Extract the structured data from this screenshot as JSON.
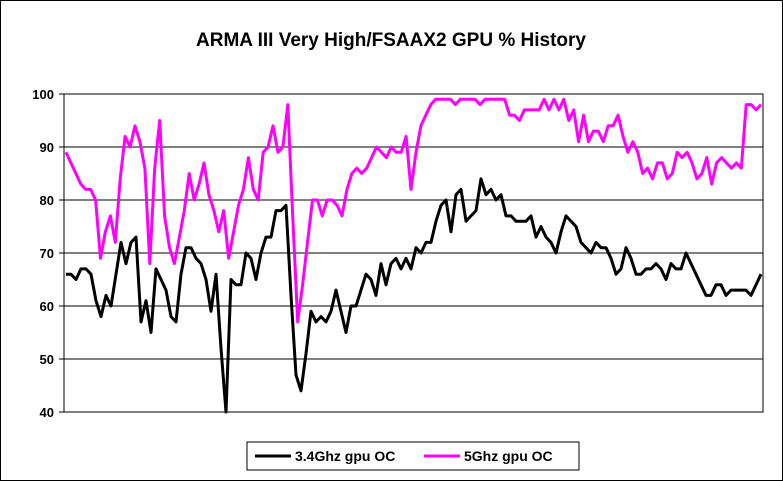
{
  "chart_data": {
    "type": "line",
    "title": "ARMA III Very High/FSAAX2 GPU % History",
    "xlabel": "",
    "ylabel": "",
    "ylim": [
      40,
      100
    ],
    "yticks": [
      "40",
      "50",
      "60",
      "70",
      "80",
      "90",
      "100"
    ],
    "grid": true,
    "legend_position": "bottom",
    "series": [
      {
        "name": "3.4Ghz gpu OC",
        "color": "#000000",
        "values": [
          66,
          66,
          65,
          67,
          67,
          66,
          61,
          58,
          62,
          60,
          66,
          72,
          68,
          72,
          73,
          57,
          61,
          55,
          67,
          65,
          63,
          58,
          57,
          66,
          71,
          71,
          69,
          68,
          65,
          59,
          66,
          52,
          40,
          65,
          64,
          64,
          70,
          69,
          65,
          70,
          73,
          73,
          78,
          78,
          79,
          62,
          47,
          44,
          51,
          59,
          57,
          58,
          57,
          59,
          63,
          59,
          55,
          60,
          60,
          63,
          66,
          65,
          62,
          68,
          64,
          68,
          69,
          67,
          69,
          67,
          71,
          70,
          72,
          72,
          76,
          79,
          80,
          74,
          81,
          82,
          76,
          77,
          78,
          84,
          81,
          82,
          80,
          81,
          77,
          77,
          76,
          76,
          76,
          77,
          73,
          75,
          73,
          72,
          70,
          74,
          77,
          76,
          75,
          72,
          71,
          70,
          72,
          71,
          71,
          69,
          66,
          67,
          71,
          69,
          66,
          66,
          67,
          67,
          68,
          67,
          65,
          68,
          67,
          67,
          70,
          68,
          66,
          64,
          62,
          62,
          64,
          64,
          62,
          63,
          63,
          63,
          63,
          62,
          64,
          66
        ]
      },
      {
        "name": "5Ghz gpu OC",
        "color": "#FF00FF",
        "values": [
          89,
          87,
          85,
          83,
          82,
          82,
          80,
          69,
          74,
          77,
          72,
          84,
          92,
          90,
          94,
          91,
          86,
          68,
          86,
          95,
          77,
          71,
          68,
          73,
          78,
          85,
          80,
          83,
          87,
          81,
          78,
          74,
          78,
          69,
          74,
          79,
          82,
          88,
          82,
          80,
          89,
          90,
          94,
          89,
          90,
          98,
          77,
          57,
          64,
          72,
          80,
          80,
          77,
          80,
          80,
          79,
          77,
          82,
          85,
          86,
          85,
          86,
          88,
          90,
          89,
          88,
          90,
          89,
          89,
          92,
          82,
          89,
          94,
          96,
          98,
          99,
          99,
          99,
          99,
          98,
          99,
          99,
          99,
          99,
          98,
          99,
          99,
          99,
          99,
          99,
          96,
          96,
          95,
          97,
          97,
          97,
          97,
          99,
          97,
          99,
          97,
          99,
          95,
          97,
          91,
          96,
          91,
          93,
          93,
          91,
          94,
          94,
          96,
          92,
          89,
          91,
          89,
          85,
          86,
          84,
          87,
          87,
          84,
          85,
          89,
          88,
          89,
          87,
          84,
          85,
          88,
          83,
          87,
          88,
          87,
          86,
          87,
          86,
          98,
          98,
          97,
          98
        ]
      }
    ]
  }
}
